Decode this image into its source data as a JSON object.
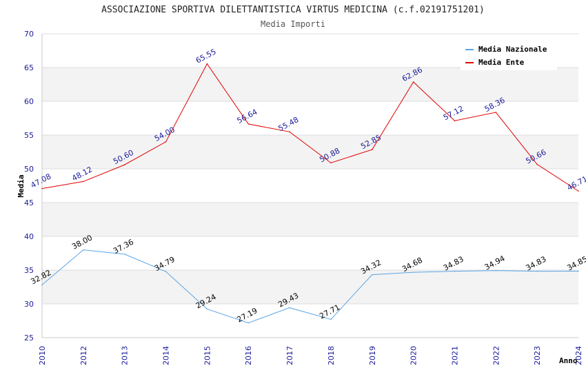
{
  "chart_data": {
    "type": "line",
    "title": "ASSOCIAZIONE SPORTIVA DILETTANTISTICA VIRTUS MEDICINA (c.f.02191751201)",
    "subtitle": "Media Importi",
    "xlabel": "Anno",
    "ylabel": "Media",
    "ylim": [
      25,
      70
    ],
    "yticks": [
      "25",
      "30",
      "35",
      "40",
      "45",
      "50",
      "55",
      "60",
      "65",
      "70"
    ],
    "categories": [
      "2010",
      "2012",
      "2013",
      "2014",
      "2015",
      "2016",
      "2017",
      "2018",
      "2019",
      "2020",
      "2021",
      "2022",
      "2023",
      "2024"
    ],
    "legend_position": "top-right",
    "series": [
      {
        "name": "Media Nazionale",
        "color": "#5aa5e6",
        "values": [
          32.82,
          38.0,
          37.36,
          34.79,
          29.24,
          27.19,
          29.43,
          27.71,
          34.32,
          34.68,
          34.83,
          34.94,
          34.83,
          34.85
        ],
        "labels": [
          "32.82",
          "38.00",
          "37.36",
          "34.79",
          "29.24",
          "27.19",
          "29.43",
          "27.71",
          "34.32",
          "34.68",
          "34.83",
          "34.94",
          "34.83",
          "34.85"
        ]
      },
      {
        "name": "Media Ente",
        "color": "#e00000",
        "values": [
          47.08,
          48.12,
          50.6,
          54.0,
          65.55,
          56.64,
          55.48,
          50.88,
          52.85,
          62.86,
          57.12,
          58.36,
          50.66,
          46.71
        ],
        "labels": [
          "47.08",
          "48.12",
          "50.60",
          "54.00",
          "65.55",
          "56.64",
          "55.48",
          "50.88",
          "52.85",
          "62.86",
          "57.12",
          "58.36",
          "50.66",
          "46.71"
        ]
      }
    ]
  }
}
